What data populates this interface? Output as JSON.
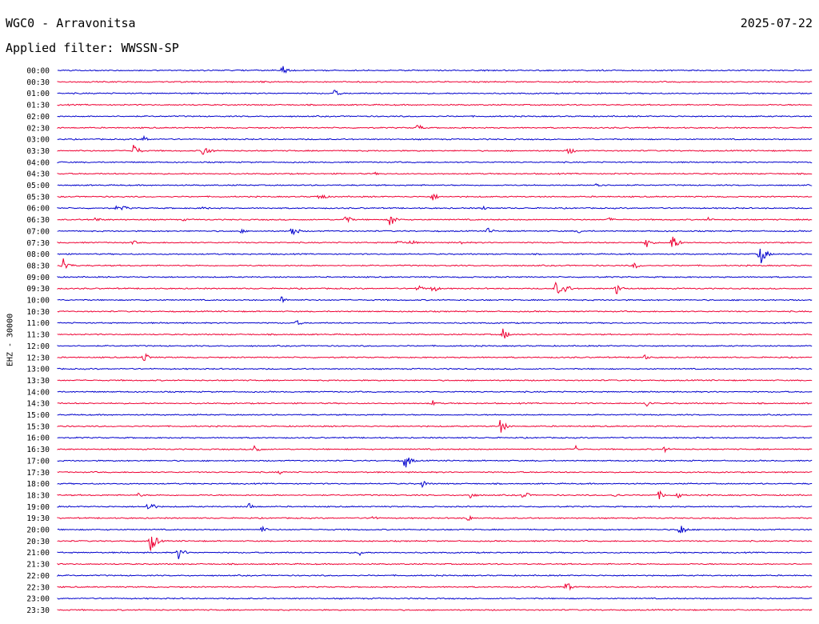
{
  "header": {
    "station": "WGC0 - Arravonitsa",
    "date": "2025-07-22",
    "filter": "Applied filter: WWSSN-SP"
  },
  "chart_data": {
    "type": "line",
    "ylabel": "EHZ - 30000",
    "colors": [
      "#0000cc",
      "#ee0033"
    ],
    "rows": [
      "00:00",
      "00:30",
      "01:00",
      "01:30",
      "02:00",
      "02:30",
      "03:00",
      "03:30",
      "04:00",
      "04:30",
      "05:00",
      "05:30",
      "06:00",
      "06:30",
      "07:00",
      "07:30",
      "08:00",
      "08:30",
      "09:00",
      "09:30",
      "10:00",
      "10:30",
      "11:00",
      "11:30",
      "12:00",
      "12:30",
      "13:00",
      "13:30",
      "14:00",
      "14:30",
      "15:00",
      "15:30",
      "16:00",
      "16:30",
      "17:00",
      "17:30",
      "18:00",
      "18:30",
      "19:00",
      "19:30",
      "20:00",
      "20:30",
      "21:00",
      "21:30",
      "22:00",
      "22:30",
      "23:00",
      "23:30"
    ],
    "x_range_minutes": [
      0,
      30
    ],
    "events": [
      [
        0,
        8.9,
        8
      ],
      [
        1,
        8.1,
        2
      ],
      [
        2,
        11.0,
        5
      ],
      [
        3,
        5.0,
        1
      ],
      [
        4,
        16.5,
        1
      ],
      [
        5,
        14.3,
        5
      ],
      [
        6,
        3.4,
        5
      ],
      [
        7,
        3.0,
        10
      ],
      [
        7,
        5.8,
        10
      ],
      [
        7,
        20.3,
        6
      ],
      [
        9,
        12.6,
        2
      ],
      [
        10,
        21.4,
        5
      ],
      [
        11,
        10.4,
        7
      ],
      [
        11,
        14.9,
        6
      ],
      [
        12,
        2.3,
        3
      ],
      [
        12,
        2.6,
        4
      ],
      [
        12,
        5.8,
        3
      ],
      [
        12,
        16.9,
        3
      ],
      [
        13,
        1.5,
        4
      ],
      [
        13,
        5.0,
        2
      ],
      [
        13,
        11.4,
        8
      ],
      [
        13,
        13.2,
        10
      ],
      [
        13,
        21.9,
        3
      ],
      [
        13,
        25.8,
        4
      ],
      [
        14,
        7.3,
        3
      ],
      [
        14,
        9.3,
        9
      ],
      [
        14,
        17.1,
        5
      ],
      [
        14,
        20.7,
        3
      ],
      [
        15,
        3.0,
        3
      ],
      [
        15,
        13.5,
        4
      ],
      [
        15,
        14.0,
        5
      ],
      [
        15,
        16.0,
        3
      ],
      [
        15,
        23.4,
        7
      ],
      [
        15,
        24.4,
        13
      ],
      [
        16,
        27.9,
        16
      ],
      [
        17,
        0.2,
        12
      ],
      [
        17,
        22.9,
        5
      ],
      [
        19,
        14.3,
        5
      ],
      [
        19,
        14.9,
        6
      ],
      [
        19,
        19.8,
        10
      ],
      [
        19,
        20.2,
        6
      ],
      [
        19,
        22.2,
        8
      ],
      [
        20,
        8.9,
        5
      ],
      [
        22,
        9.5,
        4
      ],
      [
        23,
        17.7,
        8
      ],
      [
        25,
        3.4,
        8
      ],
      [
        25,
        23.3,
        4
      ],
      [
        29,
        14.9,
        4
      ],
      [
        29,
        23.4,
        5
      ],
      [
        31,
        17.6,
        10
      ],
      [
        33,
        7.8,
        8
      ],
      [
        33,
        20.6,
        5
      ],
      [
        33,
        24.1,
        4
      ],
      [
        34,
        13.8,
        12
      ],
      [
        35,
        8.8,
        3
      ],
      [
        36,
        14.5,
        5
      ],
      [
        37,
        3.2,
        3
      ],
      [
        37,
        16.4,
        5
      ],
      [
        37,
        18.5,
        6
      ],
      [
        37,
        22.1,
        4
      ],
      [
        37,
        23.9,
        6
      ],
      [
        37,
        24.6,
        5
      ],
      [
        38,
        3.6,
        9
      ],
      [
        38,
        7.6,
        5
      ],
      [
        39,
        12.5,
        4
      ],
      [
        39,
        16.3,
        5
      ],
      [
        40,
        8.1,
        5
      ],
      [
        40,
        24.7,
        10
      ],
      [
        41,
        3.7,
        15
      ],
      [
        42,
        4.8,
        9
      ],
      [
        42,
        12.0,
        4
      ],
      [
        45,
        20.2,
        8
      ]
    ]
  }
}
